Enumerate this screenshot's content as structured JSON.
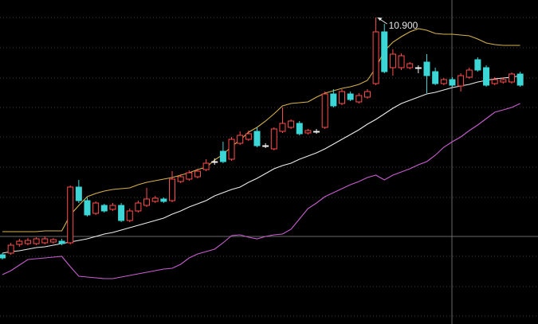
{
  "chart_data": {
    "type": "candlestick",
    "ylim": [
      7.05,
      11.12
    ],
    "up_color": "#ff4d4d",
    "down_color": "#3dd6d6",
    "flat_color": "#f0f0f0",
    "open": [
      7.92,
      7.94,
      8.05,
      8.06,
      8.06,
      8.07,
      8.08,
      8.09,
      8.07,
      8.77,
      8.6,
      8.44,
      8.54,
      8.49,
      8.54,
      8.35,
      8.47,
      8.54,
      8.59,
      8.62,
      8.6,
      8.84,
      8.87,
      8.9,
      8.99,
      9.09,
      9.22,
      9.12,
      9.32,
      9.37,
      9.47,
      9.29,
      9.25,
      9.47,
      9.52,
      9.57,
      9.45,
      9.47,
      9.52,
      9.94,
      9.82,
      9.94,
      9.84,
      9.9,
      10.07,
      10.72,
      10.27,
      10.27,
      10.27,
      10.27,
      10.34,
      10.22,
      10.07,
      10.12,
      10.04,
      10.15,
      10.37,
      10.27,
      10.07,
      10.09,
      10.09,
      10.19
    ],
    "high": [
      7.94,
      8.07,
      8.12,
      8.13,
      8.14,
      8.15,
      8.13,
      8.12,
      8.79,
      8.86,
      8.64,
      8.59,
      8.56,
      8.57,
      8.57,
      8.5,
      8.6,
      8.76,
      8.66,
      8.64,
      8.97,
      8.93,
      8.98,
      9.0,
      9.12,
      9.13,
      9.34,
      9.4,
      9.47,
      9.48,
      9.52,
      9.32,
      9.52,
      9.77,
      9.62,
      9.6,
      9.5,
      9.5,
      9.97,
      10.0,
      10.0,
      9.97,
      9.95,
      10.0,
      10.9,
      10.82,
      10.5,
      10.45,
      10.34,
      10.3,
      10.44,
      10.27,
      10.14,
      10.15,
      10.2,
      10.27,
      10.4,
      10.3,
      10.15,
      10.15,
      10.21,
      10.22
    ],
    "low": [
      7.86,
      7.92,
      8.02,
      8.04,
      8.04,
      8.05,
      8.06,
      8.04,
      8.05,
      8.57,
      8.4,
      8.42,
      8.45,
      8.47,
      8.33,
      8.33,
      8.45,
      8.52,
      8.57,
      8.57,
      8.58,
      8.82,
      8.85,
      8.88,
      8.97,
      9.05,
      9.07,
      9.1,
      9.3,
      9.35,
      9.27,
      9.26,
      9.23,
      9.45,
      9.5,
      9.42,
      9.43,
      9.44,
      9.5,
      9.77,
      9.8,
      9.85,
      9.82,
      9.88,
      10.05,
      10.2,
      10.17,
      10.24,
      10.25,
      10.2,
      9.95,
      10.05,
      10.05,
      10.03,
      9.97,
      10.13,
      10.22,
      10.03,
      10.05,
      10.07,
      10.07,
      10.03
    ],
    "close": [
      7.88,
      8.04,
      8.09,
      8.1,
      8.12,
      8.12,
      8.11,
      8.06,
      8.77,
      8.6,
      8.42,
      8.57,
      8.47,
      8.54,
      8.35,
      8.47,
      8.57,
      8.62,
      8.63,
      8.59,
      8.87,
      8.9,
      8.95,
      8.97,
      9.07,
      9.09,
      9.09,
      9.37,
      9.42,
      9.44,
      9.29,
      9.29,
      9.5,
      9.57,
      9.6,
      9.44,
      9.48,
      9.47,
      9.94,
      9.79,
      9.97,
      9.87,
      9.92,
      9.97,
      10.72,
      10.22,
      10.44,
      10.42,
      10.32,
      10.27,
      10.17,
      10.07,
      10.12,
      10.05,
      10.17,
      10.24,
      10.24,
      10.05,
      10.12,
      10.12,
      10.19,
      10.05
    ],
    "lines": [
      {
        "color": "#d6b24c",
        "values": [
          8.21,
          8.21,
          8.21,
          8.21,
          8.21,
          8.22,
          8.22,
          8.22,
          8.42,
          8.54,
          8.65,
          8.69,
          8.72,
          8.74,
          8.75,
          8.76,
          8.8,
          8.83,
          8.85,
          8.87,
          8.89,
          8.92,
          8.95,
          8.99,
          9.02,
          9.11,
          9.18,
          9.28,
          9.36,
          9.46,
          9.52,
          9.6,
          9.69,
          9.79,
          9.82,
          9.83,
          9.84,
          9.9,
          9.95,
          9.98,
          10.01,
          10.03,
          10.06,
          10.11,
          10.27,
          10.48,
          10.59,
          10.66,
          10.72,
          10.76,
          10.74,
          10.7,
          10.69,
          10.69,
          10.68,
          10.67,
          10.63,
          10.58,
          10.56,
          10.55,
          10.55,
          10.55
        ]
      },
      {
        "color": "#ececec",
        "values": [
          7.94,
          7.96,
          7.97,
          7.99,
          8.01,
          8.02,
          8.04,
          8.06,
          8.08,
          8.1,
          8.12,
          8.15,
          8.18,
          8.2,
          8.23,
          8.26,
          8.29,
          8.32,
          8.35,
          8.38,
          8.43,
          8.47,
          8.52,
          8.56,
          8.6,
          8.66,
          8.7,
          8.74,
          8.77,
          8.83,
          8.88,
          8.94,
          9.0,
          9.04,
          9.07,
          9.12,
          9.16,
          9.2,
          9.25,
          9.31,
          9.37,
          9.43,
          9.49,
          9.56,
          9.62,
          9.69,
          9.76,
          9.82,
          9.86,
          9.9,
          9.94,
          9.96,
          9.99,
          10.02,
          10.04,
          10.06,
          10.09,
          10.11,
          10.13,
          10.14,
          10.15,
          10.17
        ]
      },
      {
        "color": "#c85ed0",
        "values": [
          7.67,
          7.72,
          7.79,
          7.86,
          7.87,
          7.88,
          7.89,
          7.9,
          7.77,
          7.65,
          7.64,
          7.63,
          7.62,
          7.62,
          7.64,
          7.66,
          7.68,
          7.7,
          7.72,
          7.74,
          7.75,
          7.8,
          7.88,
          7.93,
          7.96,
          7.99,
          8.07,
          8.16,
          8.17,
          8.14,
          8.12,
          8.15,
          8.17,
          8.18,
          8.24,
          8.37,
          8.5,
          8.57,
          8.65,
          8.7,
          8.75,
          8.8,
          8.84,
          8.89,
          8.92,
          8.86,
          8.92,
          8.96,
          9.0,
          9.05,
          9.09,
          9.17,
          9.27,
          9.34,
          9.4,
          9.48,
          9.55,
          9.63,
          9.71,
          9.74,
          9.77,
          9.82
        ]
      }
    ],
    "max_label": "10.900"
  }
}
